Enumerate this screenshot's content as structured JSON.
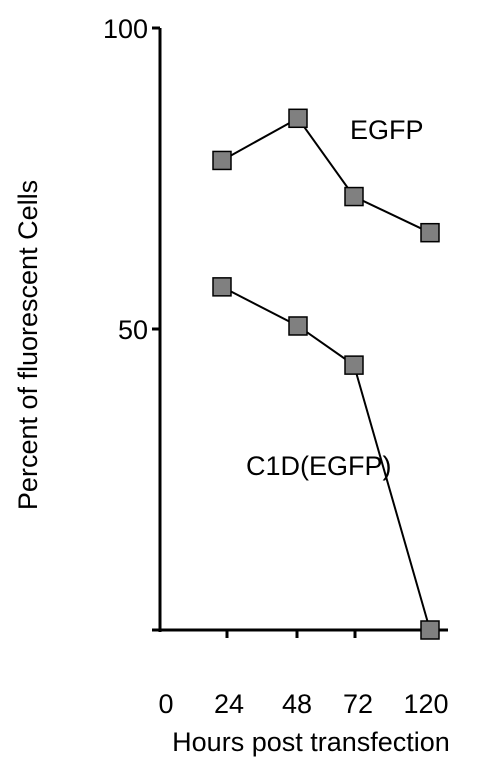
{
  "chart_data": {
    "type": "line",
    "title": "",
    "xlabel": "Hours post transfection",
    "ylabel": "Percent of fluorescent Cells",
    "x_ticks": [
      "0",
      "24",
      "48",
      "72",
      "120"
    ],
    "y_ticks": [
      0,
      50,
      100
    ],
    "y_tick_labels": [
      "",
      "50",
      "100"
    ],
    "ylim": [
      0,
      100
    ],
    "x": [
      24,
      48,
      72,
      120
    ],
    "marker": "square",
    "marker_color": "#808080",
    "series": [
      {
        "name": "EGFP",
        "values": [
          78,
          85,
          72,
          66
        ]
      },
      {
        "name": "C1D(EGFP)",
        "values": [
          57,
          50.5,
          44,
          0
        ]
      }
    ]
  }
}
